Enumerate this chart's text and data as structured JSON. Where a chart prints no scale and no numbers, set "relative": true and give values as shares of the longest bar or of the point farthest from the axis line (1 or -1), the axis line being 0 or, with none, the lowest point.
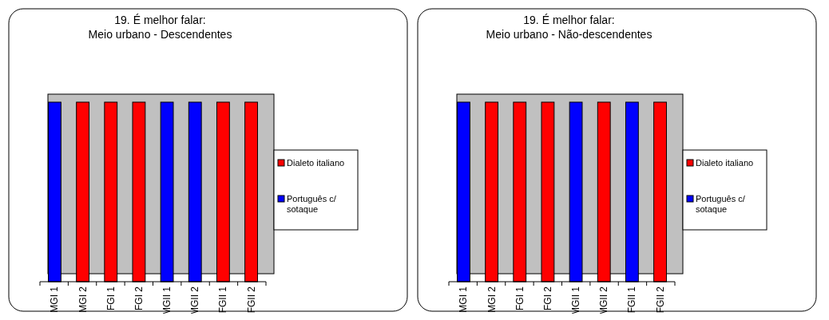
{
  "chart_data": [
    {
      "type": "bar",
      "title": "19. É melhor falar:",
      "subtitle": "Meio urbano - Descendentes",
      "categories": [
        "MGI 1",
        "MGI 2",
        "FGI 1",
        "FGI 2",
        "MGII 1",
        "MGII 2",
        "FGII 1",
        "FGII 2"
      ],
      "relative": true,
      "stacked": true,
      "legend": "right",
      "grid": false,
      "series": [
        {
          "name": "Dialeto italiano",
          "color": "#ff0000",
          "values": [
            null,
            1,
            1,
            1,
            null,
            null,
            1,
            1
          ]
        },
        {
          "name": "Português c/ sotaque",
          "color": "#0000ff",
          "values": [
            1,
            null,
            null,
            null,
            1,
            1,
            null,
            null
          ]
        }
      ]
    },
    {
      "type": "bar",
      "title": "19. É melhor falar:",
      "subtitle": "Meio urbano - Não-descendentes",
      "categories": [
        "MGI 1",
        "MGI 2",
        "FGI 1",
        "FGI 2",
        "MGII 1",
        "MGII 2",
        "FGII 1",
        "FGII 2"
      ],
      "relative": true,
      "stacked": true,
      "legend": "right",
      "grid": false,
      "series": [
        {
          "name": "Dialeto italiano",
          "color": "#ff0000",
          "values": [
            null,
            1,
            1,
            1,
            null,
            1,
            null,
            1
          ]
        },
        {
          "name": "Português c/ sotaque",
          "color": "#0000ff",
          "values": [
            1,
            null,
            null,
            null,
            1,
            null,
            1,
            null
          ]
        }
      ]
    }
  ]
}
